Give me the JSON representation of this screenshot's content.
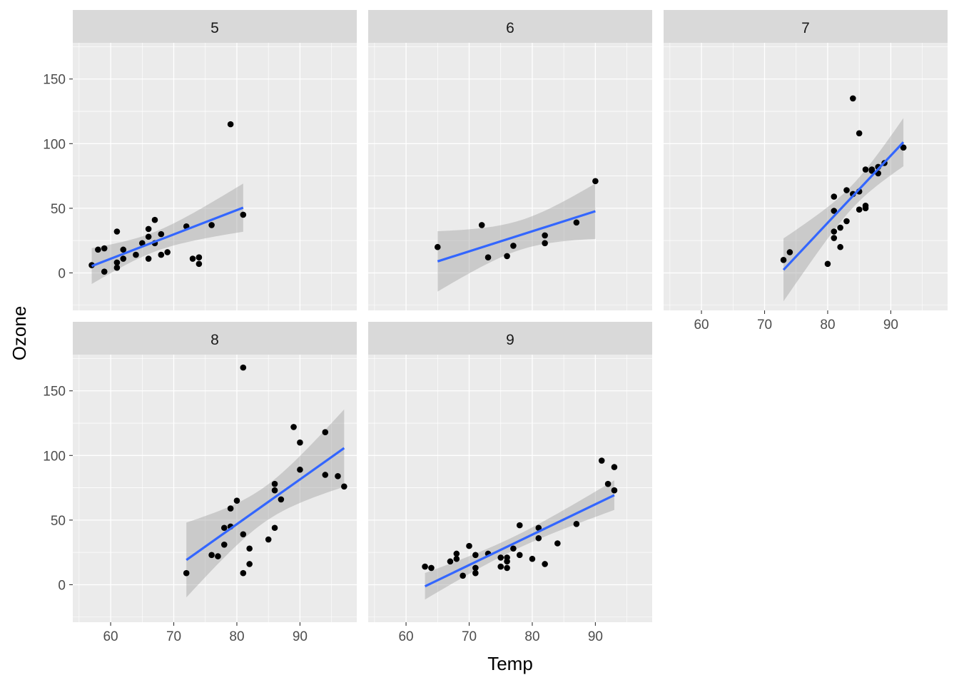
{
  "chart_data": {
    "type": "scatter",
    "title": "",
    "xlabel": "Temp",
    "ylabel": "Ozone",
    "xlim": [
      54,
      99
    ],
    "ylim": [
      -29,
      178
    ],
    "x_ticks": [
      60,
      70,
      80,
      90
    ],
    "y_ticks": [
      0,
      50,
      100,
      150
    ],
    "grid": true,
    "smooth": "linear model with confidence band",
    "colors": {
      "panel_bg": "#EBEBEB",
      "strip_bg": "#D9D9D9",
      "point": "#000000",
      "line": "#3366FF",
      "band": "#999999"
    },
    "panels": [
      {
        "label": "5",
        "points": [
          [
            67,
            41
          ],
          [
            72,
            36
          ],
          [
            74,
            12
          ],
          [
            62,
            18
          ],
          [
            66,
            28
          ],
          [
            65,
            23
          ],
          [
            59,
            19
          ],
          [
            61,
            8
          ],
          [
            74,
            7
          ],
          [
            69,
            16
          ],
          [
            66,
            11
          ],
          [
            68,
            14
          ],
          [
            58,
            18
          ],
          [
            64,
            14
          ],
          [
            66,
            34
          ],
          [
            57,
            6
          ],
          [
            68,
            30
          ],
          [
            62,
            11
          ],
          [
            59,
            1
          ],
          [
            73,
            11
          ],
          [
            61,
            4
          ],
          [
            61,
            32
          ],
          [
            67,
            23
          ],
          [
            81,
            45
          ],
          [
            79,
            115
          ],
          [
            76,
            37
          ]
        ]
      },
      {
        "label": "6",
        "points": [
          [
            82,
            29
          ],
          [
            90,
            71
          ],
          [
            87,
            39
          ],
          [
            82,
            23
          ],
          [
            77,
            21
          ],
          [
            72,
            37
          ],
          [
            65,
            20
          ],
          [
            73,
            12
          ],
          [
            76,
            13
          ]
        ]
      },
      {
        "label": "7",
        "points": [
          [
            84,
            135
          ],
          [
            85,
            49
          ],
          [
            81,
            32
          ],
          [
            83,
            64
          ],
          [
            83,
            40
          ],
          [
            88,
            77
          ],
          [
            92,
            97
          ],
          [
            92,
            97
          ],
          [
            89,
            85
          ],
          [
            73,
            10
          ],
          [
            81,
            27
          ],
          [
            80,
            7
          ],
          [
            81,
            48
          ],
          [
            82,
            35
          ],
          [
            84,
            61
          ],
          [
            87,
            79
          ],
          [
            85,
            63
          ],
          [
            74,
            16
          ],
          [
            86,
            80
          ],
          [
            85,
            108
          ],
          [
            82,
            20
          ],
          [
            86,
            52
          ],
          [
            88,
            82
          ],
          [
            86,
            50
          ],
          [
            81,
            59
          ],
          [
            87,
            80
          ]
        ]
      },
      {
        "label": "8",
        "points": [
          [
            81,
            39
          ],
          [
            81,
            9
          ],
          [
            82,
            16
          ],
          [
            86,
            78
          ],
          [
            85,
            35
          ],
          [
            87,
            66
          ],
          [
            89,
            122
          ],
          [
            90,
            89
          ],
          [
            90,
            110
          ],
          [
            86,
            44
          ],
          [
            82,
            28
          ],
          [
            80,
            65
          ],
          [
            77,
            22
          ],
          [
            79,
            59
          ],
          [
            76,
            23
          ],
          [
            78,
            31
          ],
          [
            78,
            44
          ],
          [
            72,
            9
          ],
          [
            79,
            45
          ],
          [
            81,
            168
          ],
          [
            86,
            73
          ],
          [
            97,
            76
          ],
          [
            94,
            118
          ],
          [
            96,
            84
          ],
          [
            94,
            85
          ]
        ]
      },
      {
        "label": "9",
        "points": [
          [
            91,
            96
          ],
          [
            92,
            78
          ],
          [
            93,
            73
          ],
          [
            93,
            91
          ],
          [
            87,
            47
          ],
          [
            84,
            32
          ],
          [
            80,
            20
          ],
          [
            78,
            23
          ],
          [
            75,
            21
          ],
          [
            73,
            24
          ],
          [
            81,
            44
          ],
          [
            76,
            21
          ],
          [
            77,
            28
          ],
          [
            71,
            9
          ],
          [
            71,
            13
          ],
          [
            78,
            46
          ],
          [
            67,
            18
          ],
          [
            76,
            13
          ],
          [
            68,
            24
          ],
          [
            82,
            16
          ],
          [
            64,
            13
          ],
          [
            71,
            23
          ],
          [
            81,
            36
          ],
          [
            69,
            7
          ],
          [
            63,
            14
          ],
          [
            70,
            30
          ],
          [
            75,
            14
          ],
          [
            76,
            18
          ],
          [
            68,
            20
          ]
        ]
      }
    ]
  }
}
